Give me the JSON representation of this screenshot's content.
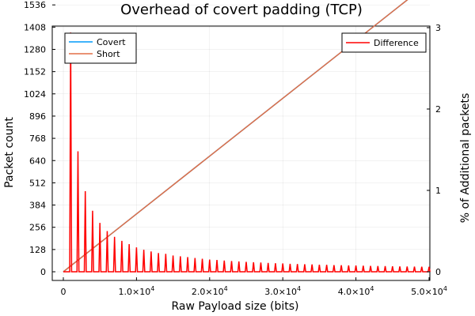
{
  "chart_data": {
    "type": "line",
    "title": "Overhead of covert padding (TCP)",
    "xlabel": "Raw Payload size (bits)",
    "ylabel_left": "Packet count",
    "ylabel_right": "% of Additional packets",
    "xlim": [
      0,
      50000
    ],
    "ylim_left": [
      0,
      1664
    ],
    "ylim_right": [
      0,
      3
    ],
    "grid": true,
    "x_ticks": [
      {
        "value": 0,
        "mant": "0",
        "exp": ""
      },
      {
        "value": 10000,
        "mant": "1.0×10",
        "exp": "4"
      },
      {
        "value": 20000,
        "mant": "2.0×10",
        "exp": "4"
      },
      {
        "value": 30000,
        "mant": "3.0×10",
        "exp": "4"
      },
      {
        "value": 40000,
        "mant": "4.0×10",
        "exp": "4"
      },
      {
        "value": 50000,
        "mant": "5.0×10",
        "exp": "4"
      }
    ],
    "y_left_ticks": [
      0,
      128,
      256,
      384,
      512,
      640,
      768,
      896,
      1024,
      1152,
      1280,
      1408,
      1536
    ],
    "y_right_ticks": [
      0,
      1,
      2,
      3
    ],
    "left_series": [
      {
        "name": "Covert",
        "color": "#009AFA"
      },
      {
        "name": "Short",
        "color": "#E26F46"
      }
    ],
    "short_line": {
      "x": [
        0,
        50000
      ],
      "y": [
        0,
        1664
      ]
    },
    "covert_line": {
      "x": [
        0,
        50000
      ],
      "y": [
        0,
        1664
      ]
    },
    "difference": {
      "name": "Difference",
      "color": "#FF0000",
      "axis": "right",
      "x": [
        1000,
        2000,
        3000,
        4000,
        5000,
        6000,
        7000,
        8000,
        9000,
        10000,
        11000,
        12000,
        13000,
        14000,
        15000,
        16000,
        17000,
        18000,
        19000,
        20000,
        21000,
        22000,
        23000,
        24000,
        25000,
        26000,
        27000,
        28000,
        29000,
        30000,
        31000,
        32000,
        33000,
        34000,
        35000,
        36000,
        37000,
        38000,
        39000,
        40000,
        41000,
        42000,
        43000,
        44000,
        45000,
        46000,
        47000,
        48000,
        49000,
        50000
      ],
      "y": [
        2.94,
        1.48,
        0.99,
        0.75,
        0.6,
        0.5,
        0.43,
        0.38,
        0.34,
        0.3,
        0.27,
        0.25,
        0.23,
        0.22,
        0.2,
        0.19,
        0.18,
        0.17,
        0.16,
        0.15,
        0.145,
        0.138,
        0.132,
        0.127,
        0.122,
        0.117,
        0.113,
        0.109,
        0.105,
        0.102,
        0.098,
        0.095,
        0.092,
        0.09,
        0.087,
        0.085,
        0.082,
        0.08,
        0.078,
        0.076,
        0.074,
        0.072,
        0.07,
        0.069,
        0.067,
        0.066,
        0.064,
        0.063,
        0.062,
        0.06
      ]
    }
  }
}
